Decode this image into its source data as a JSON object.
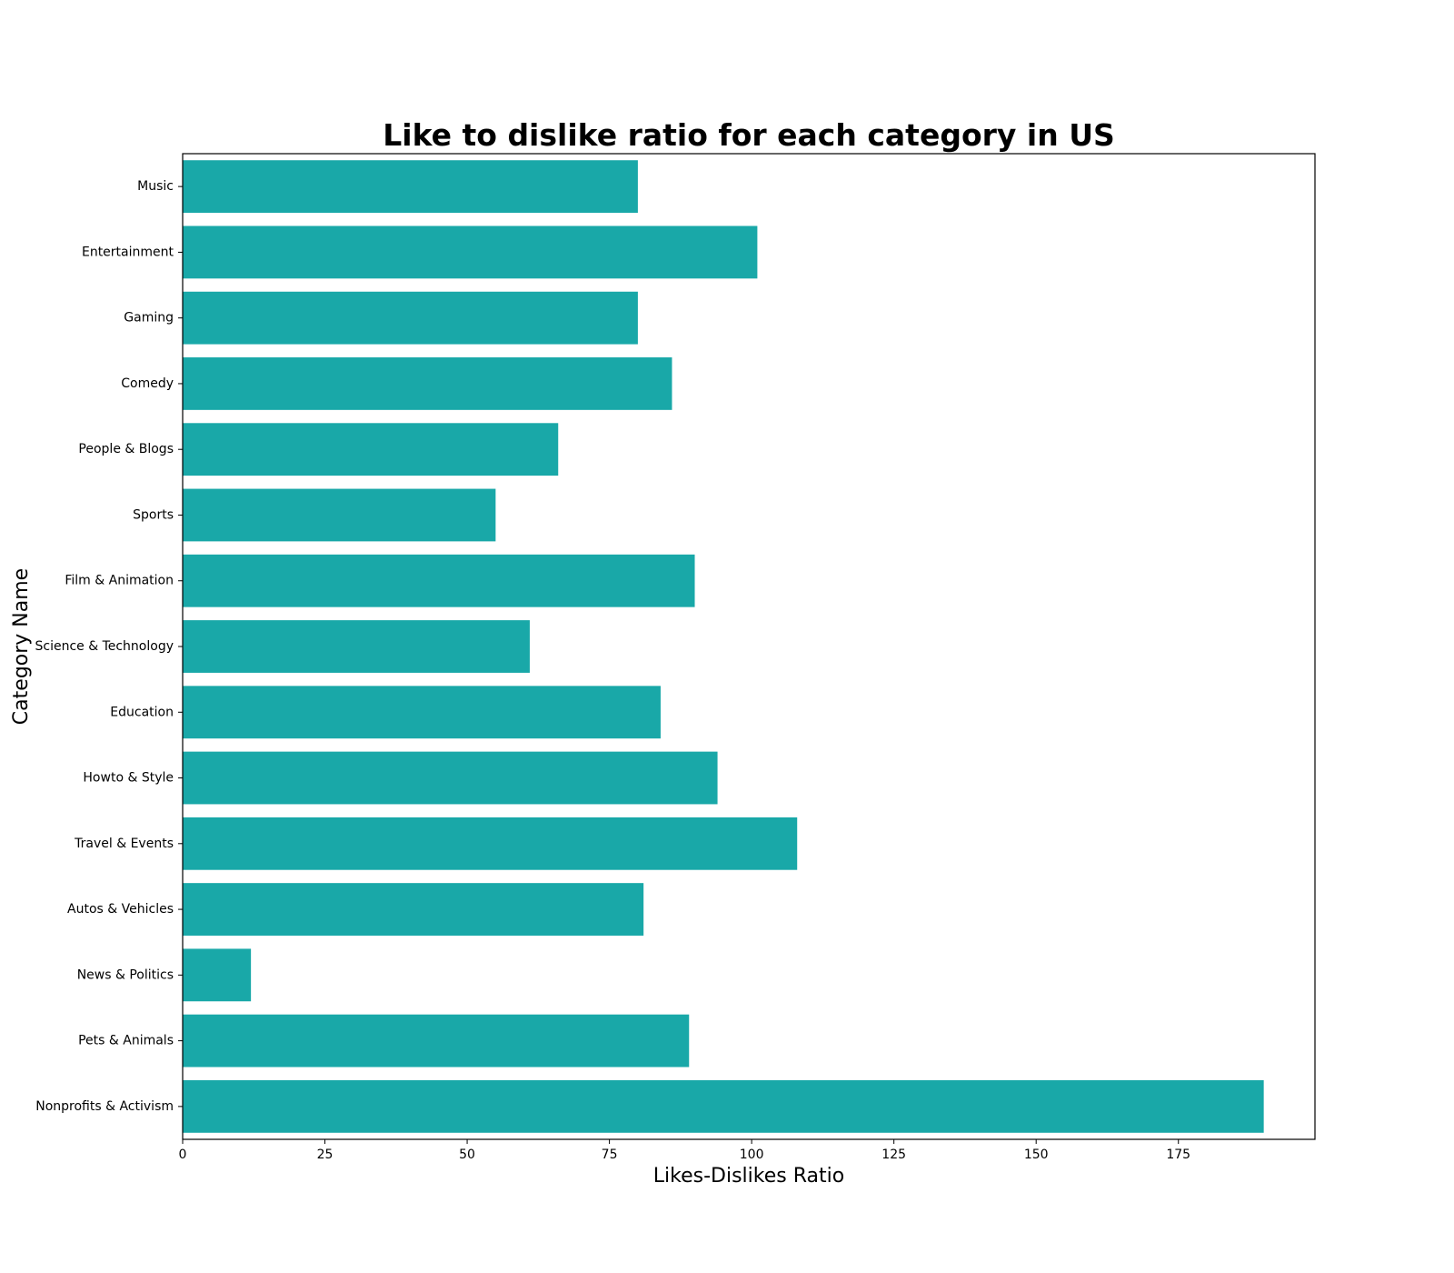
{
  "chart_data": {
    "type": "bar",
    "orientation": "horizontal",
    "title": "Like to dislike ratio for each category in US",
    "xlabel": "Likes-Dislikes Ratio",
    "ylabel": "Category Name",
    "xlim": [
      0,
      199
    ],
    "xticks": [
      0,
      25,
      50,
      75,
      100,
      125,
      150,
      175
    ],
    "grid": false,
    "bar_color": "#19a8a8",
    "categories": [
      "Music",
      "Entertainment",
      "Gaming",
      "Comedy",
      "People & Blogs",
      "Sports",
      "Film & Animation",
      "Science & Technology",
      "Education",
      "Howto & Style",
      "Travel & Events",
      "Autos & Vehicles",
      "News & Politics",
      "Pets & Animals",
      "Nonprofits & Activism"
    ],
    "values": [
      80,
      101,
      80,
      86,
      66,
      55,
      90,
      61,
      84,
      94,
      108,
      81,
      12,
      89,
      190
    ]
  }
}
